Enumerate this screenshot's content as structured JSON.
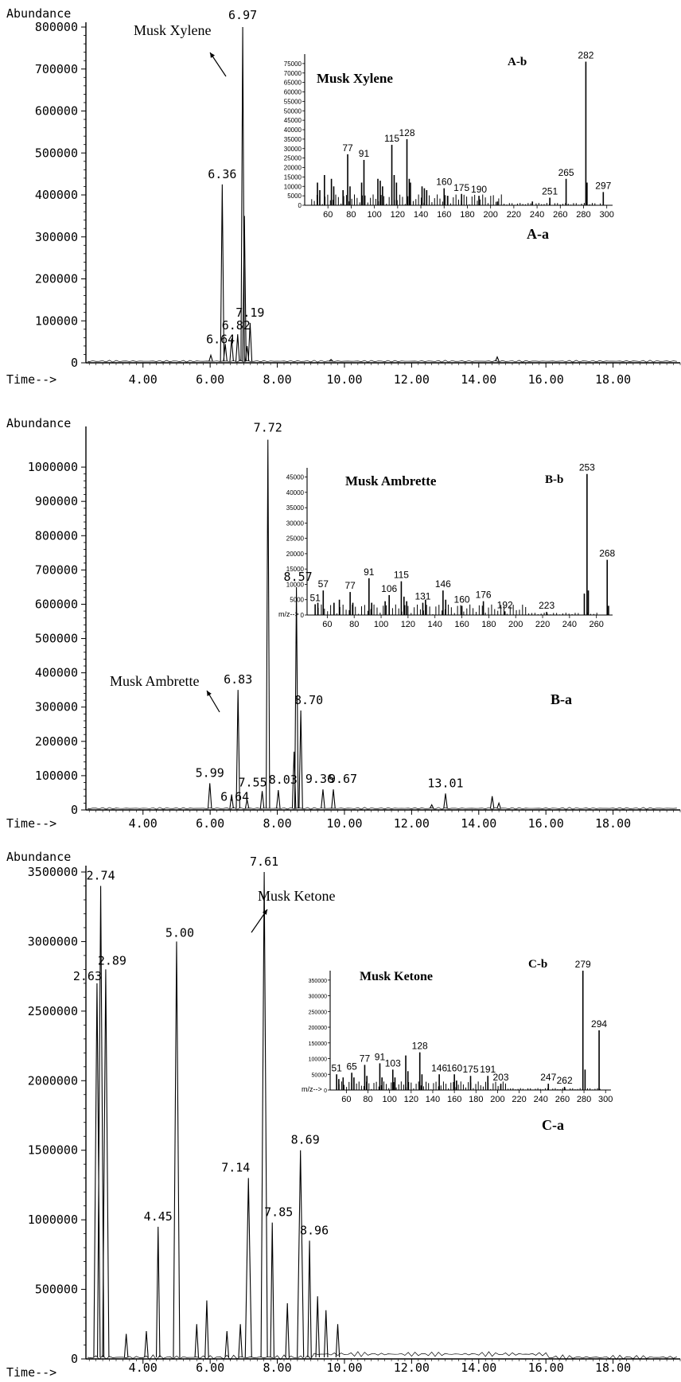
{
  "chart_data": [
    {
      "id": "A-a",
      "type": "line",
      "panel_label": "A-a",
      "ylabel": "Abundance",
      "xlabel": "Time-->",
      "x_ticks": [
        "4.00",
        "6.00",
        "8.00",
        "10.00",
        "12.00",
        "14.00",
        "16.00",
        "18.00"
      ],
      "y_ticks": [
        "0",
        "100000",
        "200000",
        "300000",
        "400000",
        "500000",
        "600000",
        "700000",
        "800000"
      ],
      "xlim": [
        2.3,
        20.0
      ],
      "ylim": [
        0,
        800000
      ],
      "peaks": [
        {
          "x": 6.97,
          "y": 800000,
          "label": "6.97"
        },
        {
          "x": 6.36,
          "y": 425000,
          "label": "6.36"
        },
        {
          "x": 7.19,
          "y": 95000,
          "label": "7.19"
        },
        {
          "x": 6.82,
          "y": 68000,
          "label": "6.82"
        },
        {
          "x": 6.64,
          "y": 58000,
          "label": "6.64"
        },
        {
          "x": 7.02,
          "y": 350000,
          "label": ""
        },
        {
          "x": 6.45,
          "y": 45000,
          "label": ""
        },
        {
          "x": 7.1,
          "y": 40000,
          "label": ""
        },
        {
          "x": 6.02,
          "y": 18000,
          "label": ""
        },
        {
          "x": 9.6,
          "y": 8000,
          "label": ""
        },
        {
          "x": 14.55,
          "y": 14000,
          "label": ""
        }
      ],
      "annotation": "Musk Xylene",
      "inset": {
        "label": "A-b",
        "title": "Musk Xylene",
        "type": "bar",
        "x_ticks": [
          "60",
          "80",
          "100",
          "120",
          "140",
          "160",
          "180",
          "200",
          "220",
          "240",
          "260",
          "280",
          "300"
        ],
        "y_ticks": [
          "0",
          "5000",
          "10000",
          "15000",
          "20000",
          "25000",
          "30000",
          "35000",
          "40000",
          "45000",
          "50000",
          "55000",
          "60000",
          "65000",
          "70000",
          "75000"
        ],
        "xlim": [
          40,
          305
        ],
        "ylim": [
          0,
          80000
        ],
        "bars": [
          {
            "x": 51,
            "y": 12000,
            "label": ""
          },
          {
            "x": 53,
            "y": 8000,
            "label": ""
          },
          {
            "x": 57,
            "y": 16000,
            "label": ""
          },
          {
            "x": 63,
            "y": 14000,
            "label": ""
          },
          {
            "x": 65,
            "y": 10000,
            "label": ""
          },
          {
            "x": 73,
            "y": 8000,
            "label": ""
          },
          {
            "x": 77,
            "y": 27000,
            "label": "77"
          },
          {
            "x": 79,
            "y": 10000,
            "label": ""
          },
          {
            "x": 89,
            "y": 12000,
            "label": ""
          },
          {
            "x": 91,
            "y": 24000,
            "label": "91"
          },
          {
            "x": 103,
            "y": 14000,
            "label": ""
          },
          {
            "x": 105,
            "y": 13000,
            "label": ""
          },
          {
            "x": 107,
            "y": 10000,
            "label": ""
          },
          {
            "x": 115,
            "y": 32000,
            "label": "115"
          },
          {
            "x": 117,
            "y": 16000,
            "label": ""
          },
          {
            "x": 119,
            "y": 12000,
            "label": ""
          },
          {
            "x": 128,
            "y": 35000,
            "label": "128"
          },
          {
            "x": 130,
            "y": 14000,
            "label": ""
          },
          {
            "x": 131,
            "y": 12000,
            "label": ""
          },
          {
            "x": 141,
            "y": 10000,
            "label": ""
          },
          {
            "x": 143,
            "y": 9000,
            "label": ""
          },
          {
            "x": 145,
            "y": 8000,
            "label": ""
          },
          {
            "x": 160,
            "y": 9000,
            "label": "160"
          },
          {
            "x": 163,
            "y": 5000,
            "label": ""
          },
          {
            "x": 175,
            "y": 6000,
            "label": "175"
          },
          {
            "x": 190,
            "y": 5000,
            "label": "190"
          },
          {
            "x": 206,
            "y": 2000,
            "label": ""
          },
          {
            "x": 236,
            "y": 2000,
            "label": ""
          },
          {
            "x": 251,
            "y": 4000,
            "label": "251"
          },
          {
            "x": 265,
            "y": 14000,
            "label": "265"
          },
          {
            "x": 282,
            "y": 76000,
            "label": "282"
          },
          {
            "x": 283,
            "y": 12000,
            "label": ""
          },
          {
            "x": 297,
            "y": 7000,
            "label": "297"
          }
        ]
      }
    },
    {
      "id": "B-a",
      "type": "line",
      "panel_label": "B-a",
      "ylabel": "Abundance",
      "xlabel": "Time-->",
      "x_ticks": [
        "4.00",
        "6.00",
        "8.00",
        "10.00",
        "12.00",
        "14.00",
        "16.00",
        "18.00"
      ],
      "y_ticks": [
        "0",
        "100000",
        "200000",
        "300000",
        "400000",
        "500000",
        "600000",
        "700000",
        "800000",
        "900000",
        "1000000"
      ],
      "xlim": [
        2.3,
        20.0
      ],
      "ylim": [
        0,
        1100000
      ],
      "peaks": [
        {
          "x": 7.72,
          "y": 1080000,
          "label": "7.72"
        },
        {
          "x": 8.57,
          "y": 650000,
          "label": "8.57"
        },
        {
          "x": 6.83,
          "y": 350000,
          "label": "6.83"
        },
        {
          "x": 8.7,
          "y": 290000,
          "label": "8.70"
        },
        {
          "x": 5.99,
          "y": 78000,
          "label": "5.99"
        },
        {
          "x": 6.64,
          "y": 45000,
          "label": "6.64"
        },
        {
          "x": 7.55,
          "y": 55000,
          "label": "7.55"
        },
        {
          "x": 8.03,
          "y": 58000,
          "label": "8.03"
        },
        {
          "x": 9.36,
          "y": 60000,
          "label": "9.36"
        },
        {
          "x": 9.67,
          "y": 60000,
          "label": "9.67"
        },
        {
          "x": 13.01,
          "y": 48000,
          "label": "13.01"
        },
        {
          "x": 8.5,
          "y": 170000,
          "label": ""
        },
        {
          "x": 7.1,
          "y": 30000,
          "label": ""
        },
        {
          "x": 12.6,
          "y": 15000,
          "label": ""
        },
        {
          "x": 14.4,
          "y": 40000,
          "label": ""
        },
        {
          "x": 14.6,
          "y": 20000,
          "label": ""
        }
      ],
      "annotation": "Musk Ambrette",
      "inset": {
        "label": "B-b",
        "title": "Musk Ambrette",
        "type": "bar",
        "axis_label": "m/z-->",
        "x_ticks": [
          "60",
          "80",
          "100",
          "120",
          "140",
          "160",
          "180",
          "200",
          "220",
          "240",
          "260"
        ],
        "y_ticks": [
          "0",
          "5000",
          "10000",
          "15000",
          "20000",
          "25000",
          "30000",
          "35000",
          "40000",
          "45000"
        ],
        "xlim": [
          45,
          272
        ],
        "ylim": [
          0,
          48000
        ],
        "bars": [
          {
            "x": 51,
            "y": 3500,
            "label": "51"
          },
          {
            "x": 53,
            "y": 4000,
            "label": ""
          },
          {
            "x": 57,
            "y": 8000,
            "label": "57"
          },
          {
            "x": 65,
            "y": 4000,
            "label": ""
          },
          {
            "x": 69,
            "y": 5000,
            "label": ""
          },
          {
            "x": 77,
            "y": 7500,
            "label": "77"
          },
          {
            "x": 79,
            "y": 4000,
            "label": ""
          },
          {
            "x": 91,
            "y": 12000,
            "label": "91"
          },
          {
            "x": 93,
            "y": 4000,
            "label": ""
          },
          {
            "x": 103,
            "y": 4500,
            "label": ""
          },
          {
            "x": 106,
            "y": 6500,
            "label": "106"
          },
          {
            "x": 115,
            "y": 11000,
            "label": "115"
          },
          {
            "x": 117,
            "y": 6000,
            "label": ""
          },
          {
            "x": 119,
            "y": 4500,
            "label": ""
          },
          {
            "x": 131,
            "y": 4000,
            "label": "131"
          },
          {
            "x": 133,
            "y": 5000,
            "label": ""
          },
          {
            "x": 146,
            "y": 8000,
            "label": "146"
          },
          {
            "x": 148,
            "y": 5000,
            "label": ""
          },
          {
            "x": 160,
            "y": 3000,
            "label": "160"
          },
          {
            "x": 176,
            "y": 4500,
            "label": "176"
          },
          {
            "x": 192,
            "y": 1200,
            "label": "192"
          },
          {
            "x": 223,
            "y": 1000,
            "label": "223"
          },
          {
            "x": 251,
            "y": 7000,
            "label": ""
          },
          {
            "x": 253,
            "y": 46000,
            "label": "253"
          },
          {
            "x": 254,
            "y": 8000,
            "label": ""
          },
          {
            "x": 268,
            "y": 18000,
            "label": "268"
          },
          {
            "x": 269,
            "y": 3000,
            "label": ""
          }
        ]
      }
    },
    {
      "id": "C-a",
      "type": "line",
      "panel_label": "C-a",
      "ylabel": "Abundance",
      "xlabel": "Time-->",
      "x_ticks": [
        "4.00",
        "6.00",
        "8.00",
        "10.00",
        "12.00",
        "14.00",
        "16.00",
        "18.00"
      ],
      "y_ticks": [
        "0",
        "500000",
        "1000000",
        "1500000",
        "2000000",
        "2500000",
        "3000000",
        "3500000"
      ],
      "xlim": [
        2.3,
        20.0
      ],
      "ylim": [
        0,
        3500000
      ],
      "peaks": [
        {
          "x": 2.74,
          "y": 3400000,
          "label": "2.74"
        },
        {
          "x": 2.89,
          "y": 2800000,
          "label": "2.89"
        },
        {
          "x": 2.63,
          "y": 2700000,
          "label": "2.63"
        },
        {
          "x": 5.0,
          "y": 3000000,
          "label": "5.00"
        },
        {
          "x": 7.61,
          "y": 3500000,
          "label": "7.61"
        },
        {
          "x": 4.45,
          "y": 950000,
          "label": "4.45"
        },
        {
          "x": 7.14,
          "y": 1300000,
          "label": "7.14"
        },
        {
          "x": 7.85,
          "y": 980000,
          "label": "7.85"
        },
        {
          "x": 8.69,
          "y": 1500000,
          "label": "8.69"
        },
        {
          "x": 8.96,
          "y": 850000,
          "label": "8.96"
        },
        {
          "x": 5.9,
          "y": 420000,
          "label": ""
        },
        {
          "x": 3.5,
          "y": 180000,
          "label": ""
        },
        {
          "x": 4.1,
          "y": 200000,
          "label": ""
        },
        {
          "x": 5.6,
          "y": 250000,
          "label": ""
        },
        {
          "x": 6.5,
          "y": 200000,
          "label": ""
        },
        {
          "x": 6.9,
          "y": 250000,
          "label": ""
        },
        {
          "x": 8.3,
          "y": 400000,
          "label": ""
        },
        {
          "x": 9.2,
          "y": 450000,
          "label": ""
        },
        {
          "x": 9.45,
          "y": 350000,
          "label": ""
        },
        {
          "x": 9.8,
          "y": 250000,
          "label": ""
        }
      ],
      "annotation": "Musk Ketone",
      "inset": {
        "label": "C-b",
        "title": "Musk Ketone",
        "type": "bar",
        "axis_label": "m/z-->",
        "x_ticks": [
          "60",
          "80",
          "100",
          "120",
          "140",
          "160",
          "180",
          "200",
          "220",
          "240",
          "260",
          "280",
          "300"
        ],
        "y_ticks": [
          "0",
          "50000",
          "100000",
          "150000",
          "200000",
          "250000",
          "300000",
          "350000"
        ],
        "xlim": [
          45,
          305
        ],
        "ylim": [
          0,
          380000
        ],
        "bars": [
          {
            "x": 51,
            "y": 50000,
            "label": "51"
          },
          {
            "x": 53,
            "y": 35000,
            "label": ""
          },
          {
            "x": 57,
            "y": 40000,
            "label": ""
          },
          {
            "x": 65,
            "y": 55000,
            "label": "65"
          },
          {
            "x": 67,
            "y": 40000,
            "label": ""
          },
          {
            "x": 77,
            "y": 80000,
            "label": "77"
          },
          {
            "x": 79,
            "y": 45000,
            "label": ""
          },
          {
            "x": 91,
            "y": 85000,
            "label": "91"
          },
          {
            "x": 93,
            "y": 40000,
            "label": ""
          },
          {
            "x": 103,
            "y": 65000,
            "label": "103"
          },
          {
            "x": 105,
            "y": 40000,
            "label": ""
          },
          {
            "x": 115,
            "y": 110000,
            "label": ""
          },
          {
            "x": 117,
            "y": 60000,
            "label": ""
          },
          {
            "x": 128,
            "y": 120000,
            "label": "128"
          },
          {
            "x": 130,
            "y": 50000,
            "label": ""
          },
          {
            "x": 146,
            "y": 50000,
            "label": "146"
          },
          {
            "x": 160,
            "y": 50000,
            "label": "160"
          },
          {
            "x": 162,
            "y": 30000,
            "label": ""
          },
          {
            "x": 175,
            "y": 45000,
            "label": "175"
          },
          {
            "x": 191,
            "y": 45000,
            "label": "191"
          },
          {
            "x": 203,
            "y": 20000,
            "label": "203"
          },
          {
            "x": 247,
            "y": 20000,
            "label": "247"
          },
          {
            "x": 262,
            "y": 10000,
            "label": "262"
          },
          {
            "x": 279,
            "y": 380000,
            "label": "279"
          },
          {
            "x": 281,
            "y": 65000,
            "label": ""
          },
          {
            "x": 294,
            "y": 190000,
            "label": "294"
          }
        ]
      }
    }
  ]
}
